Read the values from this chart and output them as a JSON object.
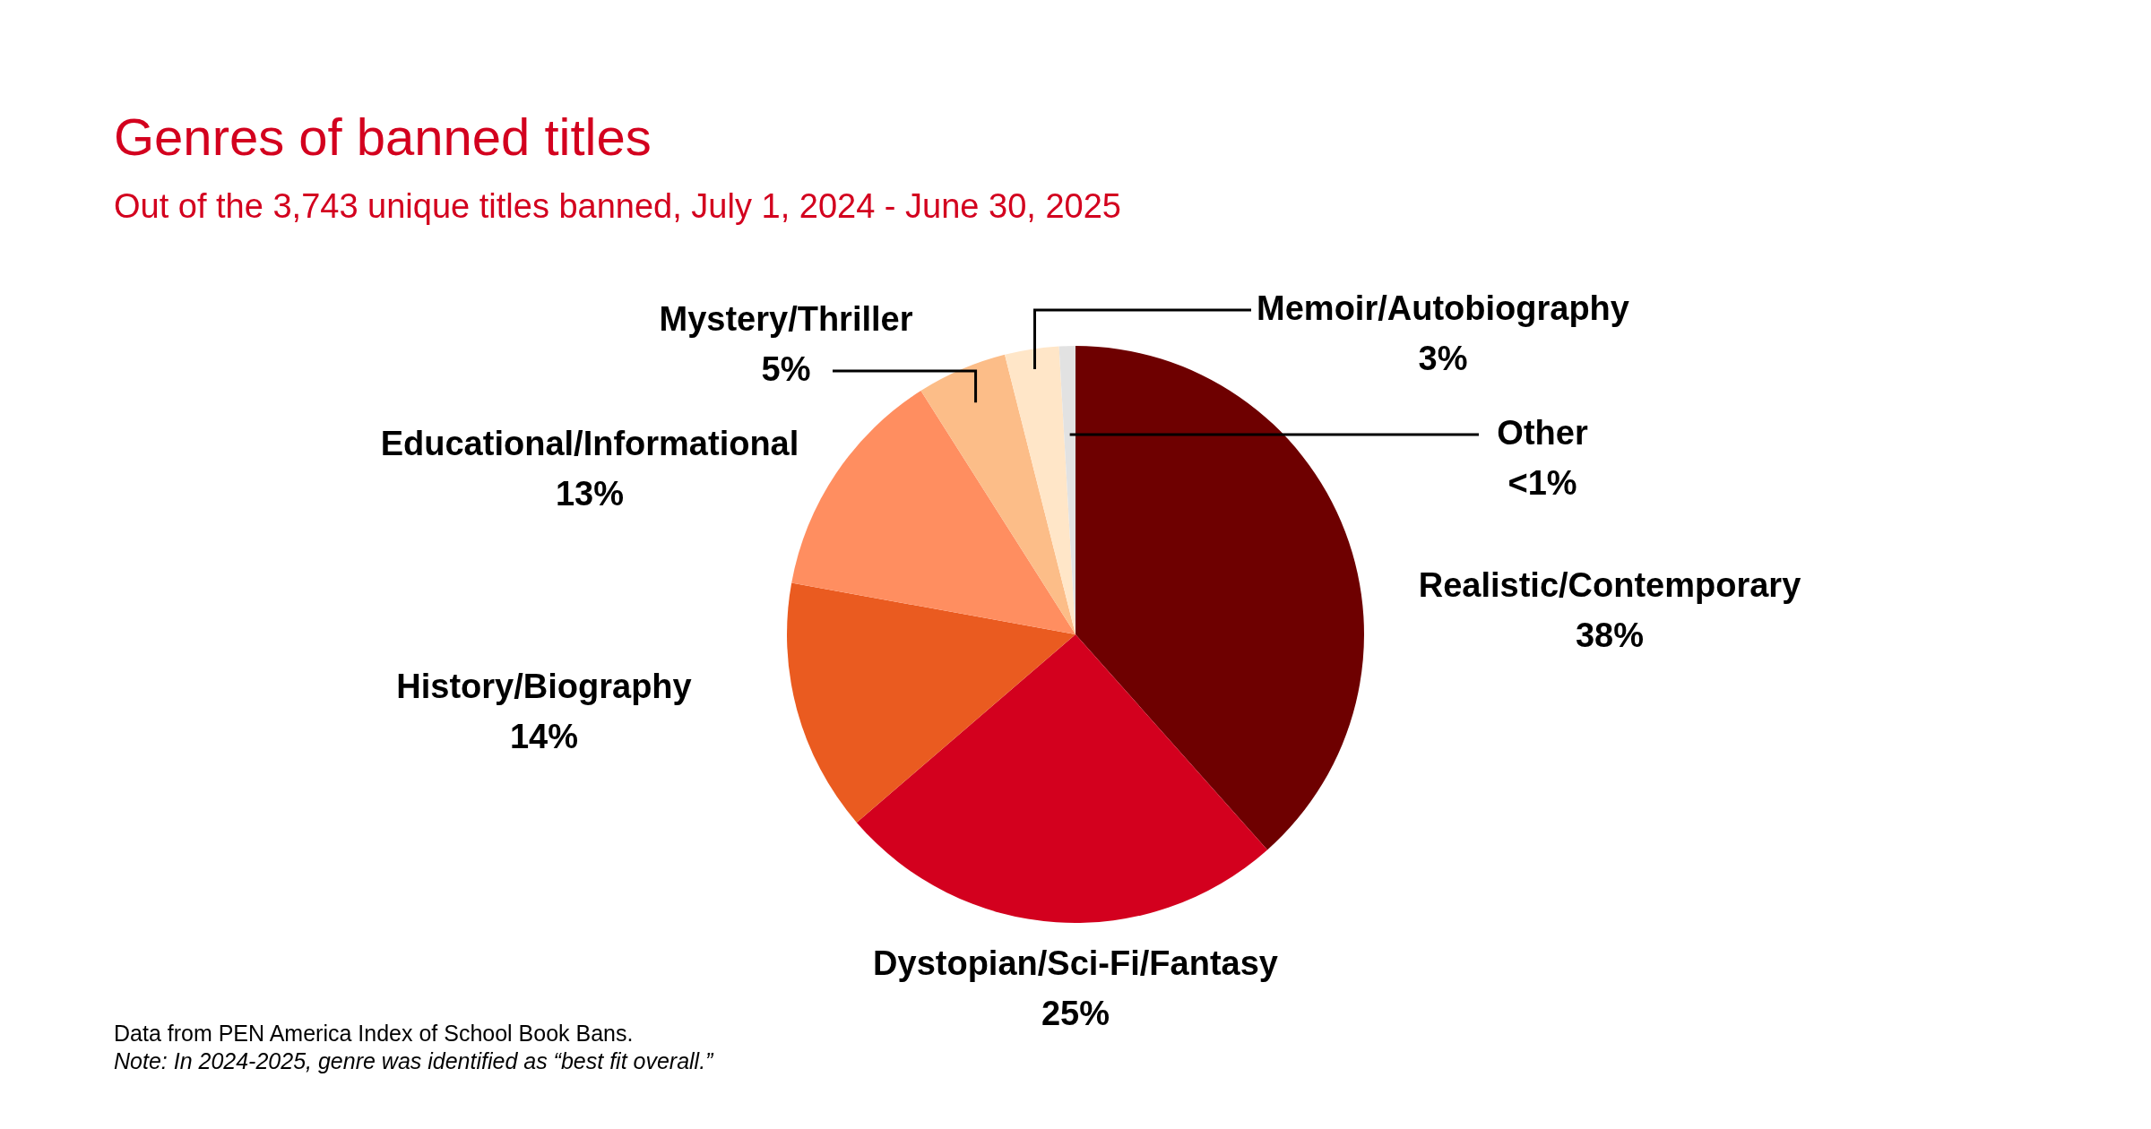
{
  "chart_data": {
    "type": "pie",
    "title": "Genres of banned titles",
    "subtitle": "Out of the 3,743 unique titles banned, July 1, 2024 - June 30, 2025",
    "categories": [
      "Realistic/Contemporary",
      "Dystopian/Sci-Fi/Fantasy",
      "History/Biography",
      "Educational/Informational",
      "Mystery/Thriller",
      "Memoir/Autobiography",
      "Other"
    ],
    "values": [
      38,
      25,
      14,
      13,
      5,
      3,
      0.9
    ],
    "colors": [
      "#6e0000",
      "#d3001e",
      "#ea5b20",
      "#ff8e60",
      "#fcbd88",
      "#ffe6c8",
      "#e2e2e2"
    ],
    "value_labels": [
      "38%",
      "25%",
      "14%",
      "13%",
      "5%",
      "3%",
      "<1%"
    ],
    "annotations": [
      "Data from PEN America Index of School Book Bans.",
      "Note: In 2024-2025, genre was identified as “best fit overall.”"
    ]
  }
}
